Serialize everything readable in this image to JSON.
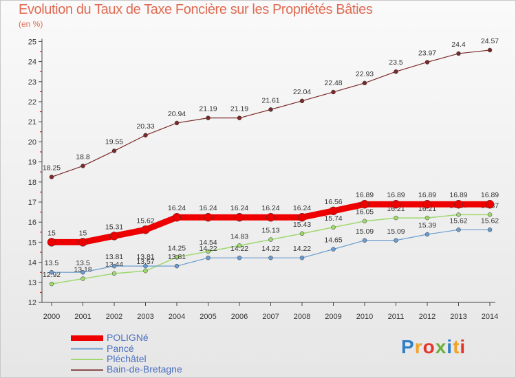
{
  "title": "Evolution du Taux de Taxe Foncière sur les Propriétés Bâties",
  "subtitle": "(en %)",
  "logo": {
    "text": "Proxiti",
    "letters": [
      "P",
      "r",
      "o",
      "x",
      "i",
      "t",
      "i"
    ],
    "colors": [
      "#2f7fc8",
      "#f2a227",
      "#e6342c",
      "#6bb13b",
      "#2f7fc8",
      "#f2a227",
      "#e6342c"
    ]
  },
  "chart_data": {
    "type": "line",
    "x": [
      2000,
      2001,
      2002,
      2003,
      2004,
      2005,
      2006,
      2007,
      2008,
      2009,
      2010,
      2011,
      2012,
      2013,
      2014
    ],
    "ylim": [
      12,
      25
    ],
    "yticks": [
      12,
      13,
      14,
      15,
      16,
      17,
      18,
      19,
      20,
      21,
      22,
      23,
      24,
      25
    ],
    "grid": false,
    "legend": "bottom-left",
    "series": [
      {
        "name": "Bain-de-Bretagne",
        "color": "#7a2a2a",
        "values": [
          18.25,
          18.8,
          19.55,
          20.33,
          20.94,
          21.19,
          21.19,
          21.61,
          22.04,
          22.48,
          22.93,
          23.5,
          23.97,
          24.4,
          24.57
        ],
        "labels": [
          "18.25",
          "18.8",
          "19.55",
          "20.33",
          "20.94",
          "21.19",
          "21.19",
          "21.61",
          "22.04",
          "22.48",
          "22.93",
          "23.5",
          "23.97",
          "24.4",
          "24.57"
        ]
      },
      {
        "name": "Pléchâtel",
        "color": "#9ed86e",
        "values": [
          12.92,
          13.18,
          13.44,
          13.57,
          14.25,
          14.54,
          14.83,
          15.13,
          15.43,
          15.74,
          16.05,
          16.21,
          16.21,
          16.37,
          16.37
        ],
        "labels": [
          "12.92",
          "13.18",
          "13.44",
          "13.57",
          "14.25",
          "14.54",
          "14.83",
          "15.13",
          "15.43",
          "15.74",
          "16.05",
          "16.21",
          "16.21",
          "16.37",
          "16.37"
        ]
      },
      {
        "name": "Pancé",
        "color": "#6a9ccf",
        "values": [
          13.5,
          13.5,
          13.81,
          13.81,
          13.81,
          14.22,
          14.22,
          14.22,
          14.22,
          14.65,
          15.09,
          15.09,
          15.39,
          15.62,
          15.62
        ],
        "labels": [
          "13.5",
          "13.5",
          "13.81",
          "13.81",
          "13.81",
          "14.22",
          "14.22",
          "14.22",
          "14.22",
          "14.65",
          "15.09",
          "15.09",
          "15.39",
          "15.62",
          "15.62"
        ]
      },
      {
        "name": "POLIGNé",
        "color": "#ee0000",
        "values": [
          15,
          15,
          15.31,
          15.62,
          16.24,
          16.24,
          16.24,
          16.24,
          16.24,
          16.56,
          16.89,
          16.89,
          16.89,
          16.89,
          16.89
        ],
        "labels": [
          "15",
          "15",
          "15.31",
          "15.62",
          "16.24",
          "16.24",
          "16.24",
          "16.24",
          "16.24",
          "16.56",
          "16.89",
          "16.89",
          "16.89",
          "16.89",
          "16.89"
        ]
      }
    ],
    "legend_entries": [
      "POLIGNé",
      "Pancé",
      "Pléchâtel",
      "Bain-de-Bretagne"
    ]
  }
}
